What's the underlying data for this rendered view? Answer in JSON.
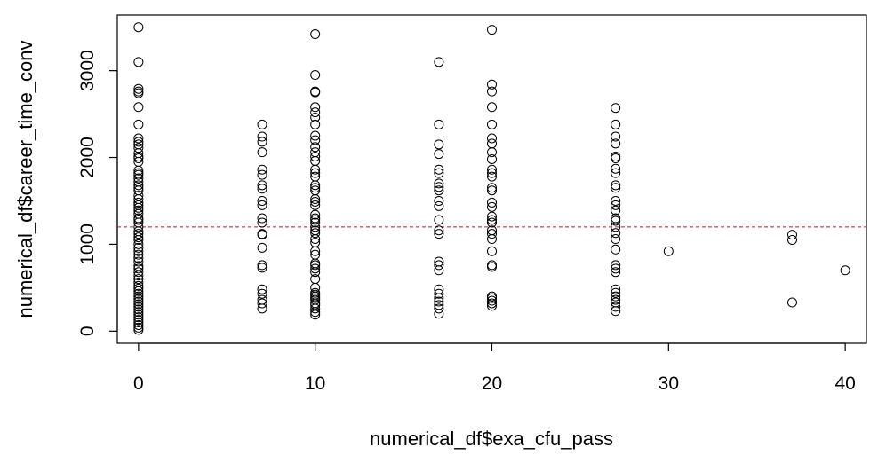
{
  "chart_data": {
    "type": "scatter",
    "xlabel": "numerical_df$exa_cfu_pass",
    "ylabel": "numerical_df$career_time_conv",
    "xlim": [
      -1.2,
      41.2
    ],
    "ylim": [
      -140,
      3640
    ],
    "xticks": [
      0,
      10,
      20,
      30,
      40
    ],
    "yticks": [
      0,
      1000,
      2000,
      3000
    ],
    "x_tick_labels": [
      "0",
      "10",
      "20",
      "30",
      "40"
    ],
    "y_tick_labels": [
      "0",
      "1000",
      "2000",
      "3000"
    ],
    "grid": false,
    "legend": "none",
    "colors": {
      "points": "#000000",
      "hline": "#b22222",
      "axes": "#000000"
    },
    "reference_line": {
      "orientation": "horizontal",
      "y": 1200,
      "style": "dashed"
    },
    "series": [
      {
        "values": [
          [
            0,
            3500
          ],
          [
            0,
            3100
          ],
          [
            0,
            2790
          ],
          [
            0,
            2760
          ],
          [
            0,
            2740
          ],
          [
            0,
            2580
          ],
          [
            0,
            2380
          ],
          [
            0,
            2220
          ],
          [
            0,
            2180
          ],
          [
            0,
            2150
          ],
          [
            0,
            2110
          ],
          [
            0,
            2050
          ],
          [
            0,
            2010
          ],
          [
            0,
            1990
          ],
          [
            0,
            1950
          ],
          [
            0,
            1850
          ],
          [
            0,
            1820
          ],
          [
            0,
            1800
          ],
          [
            0,
            1760
          ],
          [
            0,
            1720
          ],
          [
            0,
            1680
          ],
          [
            0,
            1650
          ],
          [
            0,
            1620
          ],
          [
            0,
            1560
          ],
          [
            0,
            1520
          ],
          [
            0,
            1480
          ],
          [
            0,
            1450
          ],
          [
            0,
            1420
          ],
          [
            0,
            1390
          ],
          [
            0,
            1350
          ],
          [
            0,
            1300
          ],
          [
            0,
            1280
          ],
          [
            0,
            1250
          ],
          [
            0,
            1200
          ],
          [
            0,
            1150
          ],
          [
            0,
            1120
          ],
          [
            0,
            1080
          ],
          [
            0,
            1050
          ],
          [
            0,
            1000
          ],
          [
            0,
            960
          ],
          [
            0,
            920
          ],
          [
            0,
            880
          ],
          [
            0,
            840
          ],
          [
            0,
            800
          ],
          [
            0,
            750
          ],
          [
            0,
            720
          ],
          [
            0,
            680
          ],
          [
            0,
            640
          ],
          [
            0,
            600
          ],
          [
            0,
            560
          ],
          [
            0,
            520
          ],
          [
            0,
            490
          ],
          [
            0,
            460
          ],
          [
            0,
            430
          ],
          [
            0,
            400
          ],
          [
            0,
            370
          ],
          [
            0,
            340
          ],
          [
            0,
            310
          ],
          [
            0,
            280
          ],
          [
            0,
            250
          ],
          [
            0,
            220
          ],
          [
            0,
            190
          ],
          [
            0,
            160
          ],
          [
            0,
            130
          ],
          [
            0,
            100
          ],
          [
            0,
            70
          ],
          [
            0,
            40
          ],
          [
            0,
            15
          ],
          [
            7,
            2380
          ],
          [
            7,
            2240
          ],
          [
            7,
            2180
          ],
          [
            7,
            2060
          ],
          [
            7,
            1860
          ],
          [
            7,
            1800
          ],
          [
            7,
            1680
          ],
          [
            7,
            1640
          ],
          [
            7,
            1500
          ],
          [
            7,
            1450
          ],
          [
            7,
            1300
          ],
          [
            7,
            1250
          ],
          [
            7,
            1120
          ],
          [
            7,
            1110
          ],
          [
            7,
            960
          ],
          [
            7,
            760
          ],
          [
            7,
            730
          ],
          [
            7,
            480
          ],
          [
            7,
            430
          ],
          [
            7,
            360
          ],
          [
            7,
            320
          ],
          [
            7,
            260
          ],
          [
            10,
            3420
          ],
          [
            10,
            2950
          ],
          [
            10,
            2760
          ],
          [
            10,
            2750
          ],
          [
            10,
            2580
          ],
          [
            10,
            2520
          ],
          [
            10,
            2460
          ],
          [
            10,
            2380
          ],
          [
            10,
            2250
          ],
          [
            10,
            2200
          ],
          [
            10,
            2120
          ],
          [
            10,
            2060
          ],
          [
            10,
            2010
          ],
          [
            10,
            1960
          ],
          [
            10,
            1860
          ],
          [
            10,
            1820
          ],
          [
            10,
            1780
          ],
          [
            10,
            1680
          ],
          [
            10,
            1650
          ],
          [
            10,
            1620
          ],
          [
            10,
            1520
          ],
          [
            10,
            1490
          ],
          [
            10,
            1450
          ],
          [
            10,
            1340
          ],
          [
            10,
            1300
          ],
          [
            10,
            1280
          ],
          [
            10,
            1250
          ],
          [
            10,
            1200
          ],
          [
            10,
            1160
          ],
          [
            10,
            1130
          ],
          [
            10,
            1060
          ],
          [
            10,
            1020
          ],
          [
            10,
            920
          ],
          [
            10,
            880
          ],
          [
            10,
            780
          ],
          [
            10,
            760
          ],
          [
            10,
            720
          ],
          [
            10,
            680
          ],
          [
            10,
            600
          ],
          [
            10,
            500
          ],
          [
            10,
            440
          ],
          [
            10,
            420
          ],
          [
            10,
            400
          ],
          [
            10,
            380
          ],
          [
            10,
            360
          ],
          [
            10,
            320
          ],
          [
            10,
            300
          ],
          [
            10,
            260
          ],
          [
            10,
            220
          ],
          [
            10,
            190
          ],
          [
            17,
            3100
          ],
          [
            17,
            2380
          ],
          [
            17,
            2150
          ],
          [
            17,
            2040
          ],
          [
            17,
            1860
          ],
          [
            17,
            1820
          ],
          [
            17,
            1700
          ],
          [
            17,
            1660
          ],
          [
            17,
            1620
          ],
          [
            17,
            1500
          ],
          [
            17,
            1440
          ],
          [
            17,
            1280
          ],
          [
            17,
            1160
          ],
          [
            17,
            1120
          ],
          [
            17,
            800
          ],
          [
            17,
            760
          ],
          [
            17,
            700
          ],
          [
            17,
            480
          ],
          [
            17,
            430
          ],
          [
            17,
            380
          ],
          [
            17,
            340
          ],
          [
            17,
            300
          ],
          [
            17,
            260
          ],
          [
            17,
            200
          ],
          [
            20,
            3470
          ],
          [
            20,
            2840
          ],
          [
            20,
            2760
          ],
          [
            20,
            2580
          ],
          [
            20,
            2380
          ],
          [
            20,
            2220
          ],
          [
            20,
            2160
          ],
          [
            20,
            2060
          ],
          [
            20,
            1980
          ],
          [
            20,
            1860
          ],
          [
            20,
            1820
          ],
          [
            20,
            1780
          ],
          [
            20,
            1650
          ],
          [
            20,
            1620
          ],
          [
            20,
            1480
          ],
          [
            20,
            1430
          ],
          [
            20,
            1320
          ],
          [
            20,
            1280
          ],
          [
            20,
            1250
          ],
          [
            20,
            1160
          ],
          [
            20,
            1120
          ],
          [
            20,
            1060
          ],
          [
            20,
            920
          ],
          [
            20,
            760
          ],
          [
            20,
            740
          ],
          [
            20,
            400
          ],
          [
            20,
            380
          ],
          [
            20,
            350
          ],
          [
            20,
            320
          ],
          [
            20,
            290
          ],
          [
            27,
            2570
          ],
          [
            27,
            2380
          ],
          [
            27,
            2240
          ],
          [
            27,
            2160
          ],
          [
            27,
            2010
          ],
          [
            27,
            1990
          ],
          [
            27,
            1870
          ],
          [
            27,
            1820
          ],
          [
            27,
            1680
          ],
          [
            27,
            1650
          ],
          [
            27,
            1500
          ],
          [
            27,
            1450
          ],
          [
            27,
            1390
          ],
          [
            27,
            1300
          ],
          [
            27,
            1270
          ],
          [
            27,
            1200
          ],
          [
            27,
            1130
          ],
          [
            27,
            1060
          ],
          [
            27,
            940
          ],
          [
            27,
            760
          ],
          [
            27,
            720
          ],
          [
            27,
            680
          ],
          [
            27,
            480
          ],
          [
            27,
            440
          ],
          [
            27,
            400
          ],
          [
            27,
            360
          ],
          [
            27,
            330
          ],
          [
            27,
            280
          ],
          [
            27,
            230
          ],
          [
            30,
            920
          ],
          [
            37,
            1110
          ],
          [
            37,
            1050
          ],
          [
            37,
            330
          ],
          [
            40,
            700
          ]
        ]
      }
    ]
  }
}
